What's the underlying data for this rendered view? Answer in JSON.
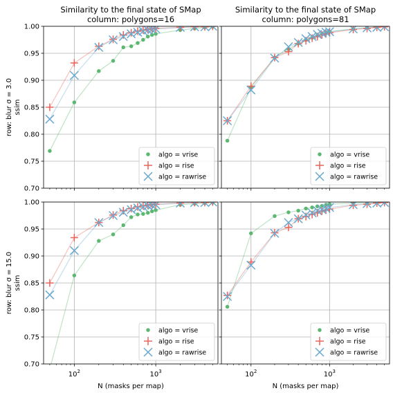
{
  "colors": {
    "vrise": "#5cb870",
    "rise": "#e8645a",
    "rawrise": "#6aa9cf",
    "grid": "#b0b0b0"
  },
  "xlabel": "N (masks per map)",
  "ylabel": "ssim",
  "legend": [
    {
      "label": "algo = vrise",
      "key": "vrise",
      "marker": "circle"
    },
    {
      "label": "algo = rise",
      "key": "rise",
      "marker": "plus"
    },
    {
      "label": "algo = rawrise",
      "key": "rawrise",
      "marker": "x"
    }
  ],
  "chart_data": [
    {
      "type": "line",
      "title": [
        "Similarity to the final state of SMap",
        "column: polygons=16"
      ],
      "row_label": "row: blur σ = 3.0",
      "x_scale": "log",
      "xlim": [
        42,
        5800
      ],
      "ylim": [
        0.7,
        1.0
      ],
      "x_ticks": [
        {
          "v": 100,
          "base": "10",
          "exp": "2"
        },
        {
          "v": 1000,
          "base": "10",
          "exp": "3"
        }
      ],
      "y_ticks": [
        "0.70",
        "0.75",
        "0.80",
        "0.85",
        "0.90",
        "0.95",
        "1.00"
      ],
      "show_xticklabels": false,
      "show_yticklabels": true,
      "legend_placement": "lower right",
      "grid": true,
      "x": [
        50,
        100,
        200,
        300,
        400,
        500,
        600,
        700,
        800,
        900,
        1000,
        2000,
        3000,
        4000,
        5000
      ],
      "series": [
        {
          "name": "algo = vrise",
          "key": "vrise",
          "values": [
            0.769,
            0.859,
            0.917,
            0.936,
            0.961,
            0.963,
            0.969,
            0.975,
            0.981,
            0.984,
            0.986,
            0.993,
            0.996,
            0.998,
            0.999
          ]
        },
        {
          "name": "algo = rise",
          "key": "rise",
          "values": [
            0.85,
            0.932,
            0.963,
            0.976,
            0.984,
            0.988,
            0.991,
            0.993,
            0.994,
            0.995,
            0.996,
            0.998,
            0.999,
            0.999,
            1.0
          ]
        },
        {
          "name": "algo = rawrise",
          "key": "rawrise",
          "values": [
            0.828,
            0.909,
            0.961,
            0.975,
            0.981,
            0.986,
            0.989,
            0.991,
            0.993,
            0.994,
            0.995,
            0.998,
            0.999,
            0.999,
            1.0
          ]
        }
      ]
    },
    {
      "type": "line",
      "title": [
        "Similarity to the final state of SMap",
        "column: polygons=81"
      ],
      "row_label": "",
      "x_scale": "log",
      "xlim": [
        42,
        5800
      ],
      "ylim": [
        0.7,
        1.0
      ],
      "x_ticks": [
        {
          "v": 100,
          "base": "10",
          "exp": "2"
        },
        {
          "v": 1000,
          "base": "10",
          "exp": "3"
        }
      ],
      "y_ticks": [
        "0.70",
        "0.75",
        "0.80",
        "0.85",
        "0.90",
        "0.95",
        "1.00"
      ],
      "show_xticklabels": false,
      "show_yticklabels": false,
      "legend_placement": "lower right",
      "grid": true,
      "x": [
        50,
        100,
        200,
        300,
        400,
        500,
        600,
        700,
        800,
        900,
        1000,
        2000,
        3000,
        4000,
        5000
      ],
      "series": [
        {
          "name": "algo = vrise",
          "key": "vrise",
          "values": [
            0.788,
            0.887,
            0.942,
            0.958,
            0.968,
            0.975,
            0.979,
            0.983,
            0.986,
            0.988,
            0.99,
            0.995,
            0.997,
            0.999,
            1.0
          ]
        },
        {
          "name": "algo = rise",
          "key": "rise",
          "values": [
            0.825,
            0.889,
            0.942,
            0.953,
            0.968,
            0.973,
            0.978,
            0.981,
            0.984,
            0.986,
            0.988,
            0.994,
            0.996,
            0.998,
            0.999
          ]
        },
        {
          "name": "algo = rawrise",
          "key": "rawrise",
          "values": [
            0.825,
            0.882,
            0.941,
            0.962,
            0.97,
            0.977,
            0.981,
            0.985,
            0.987,
            0.989,
            0.99,
            0.995,
            0.997,
            0.998,
            0.999
          ]
        }
      ]
    },
    {
      "type": "line",
      "title": [],
      "row_label": "row: blur σ = 15.0",
      "x_scale": "log",
      "xlim": [
        42,
        5800
      ],
      "ylim": [
        0.7,
        1.0
      ],
      "x_ticks": [
        {
          "v": 100,
          "base": "10",
          "exp": "2"
        },
        {
          "v": 1000,
          "base": "10",
          "exp": "3"
        }
      ],
      "y_ticks": [
        "0.70",
        "0.75",
        "0.80",
        "0.85",
        "0.90",
        "0.95",
        "1.00"
      ],
      "show_xticklabels": true,
      "show_yticklabels": true,
      "legend_placement": "lower right",
      "grid": true,
      "x": [
        50,
        100,
        200,
        300,
        400,
        500,
        600,
        700,
        800,
        900,
        1000,
        2000,
        3000,
        4000,
        5000
      ],
      "series": [
        {
          "name": "algo = vrise",
          "key": "vrise",
          "values": [
            0.69,
            0.864,
            0.928,
            0.94,
            0.957,
            0.972,
            0.977,
            0.978,
            0.98,
            0.983,
            0.985,
            0.995,
            0.997,
            0.998,
            0.999
          ]
        },
        {
          "name": "algo = rise",
          "key": "rise",
          "values": [
            0.85,
            0.934,
            0.962,
            0.976,
            0.984,
            0.988,
            0.991,
            0.993,
            0.994,
            0.995,
            0.996,
            0.998,
            0.999,
            0.999,
            1.0
          ]
        },
        {
          "name": "algo = rawrise",
          "key": "rawrise",
          "values": [
            0.828,
            0.91,
            0.962,
            0.975,
            0.981,
            0.986,
            0.989,
            0.991,
            0.993,
            0.994,
            0.995,
            0.998,
            0.999,
            0.999,
            1.0
          ]
        }
      ]
    },
    {
      "type": "line",
      "title": [],
      "row_label": "",
      "x_scale": "log",
      "xlim": [
        42,
        5800
      ],
      "ylim": [
        0.7,
        1.0
      ],
      "x_ticks": [
        {
          "v": 100,
          "base": "10",
          "exp": "2"
        },
        {
          "v": 1000,
          "base": "10",
          "exp": "3"
        }
      ],
      "y_ticks": [
        "0.70",
        "0.75",
        "0.80",
        "0.85",
        "0.90",
        "0.95",
        "1.00"
      ],
      "show_xticklabels": true,
      "show_yticklabels": false,
      "legend_placement": "lower right",
      "grid": true,
      "x": [
        50,
        100,
        200,
        300,
        400,
        500,
        600,
        700,
        800,
        900,
        1000,
        2000,
        3000,
        4000,
        5000
      ],
      "series": [
        {
          "name": "algo = vrise",
          "key": "vrise",
          "values": [
            0.806,
            0.942,
            0.974,
            0.981,
            0.984,
            0.988,
            0.99,
            0.992,
            0.993,
            0.995,
            0.996,
            0.998,
            0.999,
            0.999,
            1.0
          ]
        },
        {
          "name": "algo = rise",
          "key": "rise",
          "values": [
            0.827,
            0.889,
            0.943,
            0.953,
            0.969,
            0.973,
            0.977,
            0.98,
            0.983,
            0.985,
            0.987,
            0.994,
            0.996,
            0.998,
            0.999
          ]
        },
        {
          "name": "algo = rawrise",
          "key": "rawrise",
          "values": [
            0.825,
            0.883,
            0.942,
            0.962,
            0.969,
            0.976,
            0.98,
            0.984,
            0.986,
            0.988,
            0.99,
            0.995,
            0.997,
            0.998,
            0.999
          ]
        }
      ]
    }
  ]
}
